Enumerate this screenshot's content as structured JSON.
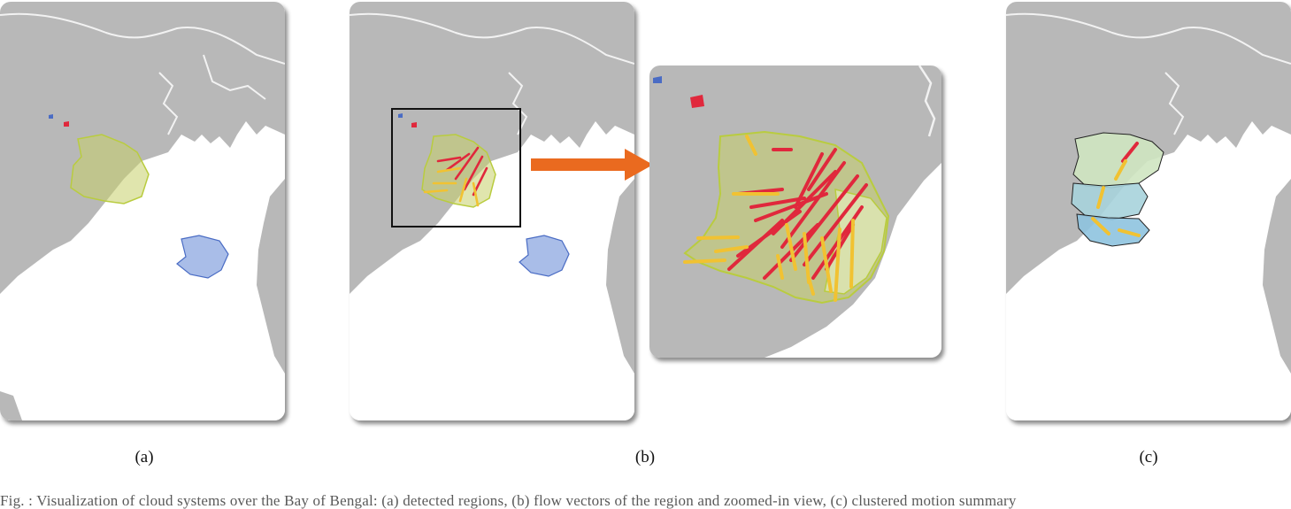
{
  "figure": {
    "captions": {
      "a": "(a)",
      "b": "(b)",
      "c": "(c)"
    },
    "colors": {
      "land": "#b8b8b8",
      "sea": "#ffffff",
      "border": "#f2f2f2",
      "region_fill": "#c7cf6a",
      "region_edge": "#b9cc3f",
      "blue_region": "#a9bde8",
      "blue_edge": "#4a6cc4",
      "arrow_red": "#e0283c",
      "arrow_yellow": "#f1c232",
      "highlight_arrow": "#ea6a1f",
      "cluster_green": "#cfe6c1",
      "cluster_teal": "#a7d3dc",
      "cluster_blue": "#8ec3df"
    },
    "footer_text": "Fig. : Visualization of cloud systems over the Bay of Bengal: (a) detected regions, (b) flow vectors of the region and zoomed-in view, (c) clustered motion summary"
  }
}
